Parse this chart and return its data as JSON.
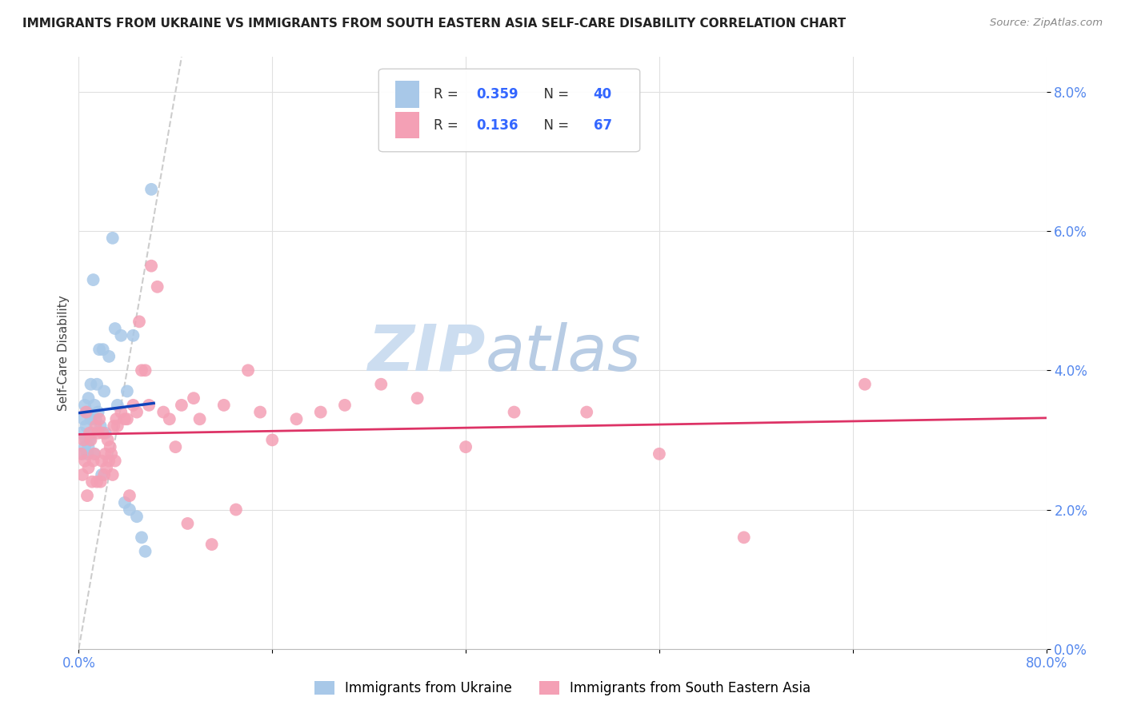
{
  "title": "IMMIGRANTS FROM UKRAINE VS IMMIGRANTS FROM SOUTH EASTERN ASIA SELF-CARE DISABILITY CORRELATION CHART",
  "source": "Source: ZipAtlas.com",
  "ylabel": "Self-Care Disability",
  "ukraine_R": 0.359,
  "ukraine_N": 40,
  "sea_R": 0.136,
  "sea_N": 67,
  "ukraine_color": "#a8c8e8",
  "sea_color": "#f4a0b5",
  "ukraine_line_color": "#1144bb",
  "sea_line_color": "#dd3366",
  "diag_line_color": "#c0c0c0",
  "background_color": "#ffffff",
  "grid_color": "#e0e0e0",
  "xlim": [
    0.0,
    0.8
  ],
  "ylim": [
    0.0,
    0.085
  ],
  "ytick_vals": [
    0.0,
    0.02,
    0.04,
    0.06,
    0.08
  ],
  "ukraine_x": [
    0.002,
    0.003,
    0.004,
    0.005,
    0.005,
    0.006,
    0.006,
    0.007,
    0.007,
    0.008,
    0.008,
    0.009,
    0.01,
    0.01,
    0.011,
    0.012,
    0.013,
    0.013,
    0.014,
    0.015,
    0.016,
    0.017,
    0.018,
    0.019,
    0.02,
    0.021,
    0.022,
    0.025,
    0.028,
    0.03,
    0.032,
    0.035,
    0.038,
    0.04,
    0.042,
    0.045,
    0.048,
    0.052,
    0.055,
    0.06
  ],
  "ukraine_y": [
    0.031,
    0.028,
    0.033,
    0.035,
    0.029,
    0.03,
    0.032,
    0.034,
    0.028,
    0.036,
    0.029,
    0.03,
    0.038,
    0.033,
    0.031,
    0.053,
    0.028,
    0.035,
    0.033,
    0.038,
    0.034,
    0.043,
    0.032,
    0.025,
    0.043,
    0.037,
    0.031,
    0.042,
    0.059,
    0.046,
    0.035,
    0.045,
    0.021,
    0.037,
    0.02,
    0.045,
    0.019,
    0.016,
    0.014,
    0.066
  ],
  "sea_x": [
    0.002,
    0.003,
    0.004,
    0.005,
    0.006,
    0.007,
    0.008,
    0.009,
    0.01,
    0.011,
    0.012,
    0.013,
    0.014,
    0.015,
    0.016,
    0.017,
    0.018,
    0.019,
    0.02,
    0.021,
    0.022,
    0.023,
    0.024,
    0.025,
    0.026,
    0.027,
    0.028,
    0.029,
    0.03,
    0.031,
    0.032,
    0.035,
    0.038,
    0.04,
    0.042,
    0.045,
    0.048,
    0.05,
    0.052,
    0.055,
    0.058,
    0.06,
    0.065,
    0.07,
    0.075,
    0.08,
    0.085,
    0.09,
    0.095,
    0.1,
    0.11,
    0.12,
    0.13,
    0.14,
    0.15,
    0.16,
    0.18,
    0.2,
    0.22,
    0.25,
    0.28,
    0.32,
    0.36,
    0.42,
    0.48,
    0.55,
    0.65
  ],
  "sea_y": [
    0.028,
    0.025,
    0.03,
    0.027,
    0.034,
    0.022,
    0.026,
    0.031,
    0.03,
    0.024,
    0.027,
    0.028,
    0.032,
    0.024,
    0.031,
    0.033,
    0.024,
    0.027,
    0.031,
    0.025,
    0.028,
    0.026,
    0.03,
    0.027,
    0.029,
    0.028,
    0.025,
    0.032,
    0.027,
    0.033,
    0.032,
    0.034,
    0.033,
    0.033,
    0.022,
    0.035,
    0.034,
    0.047,
    0.04,
    0.04,
    0.035,
    0.055,
    0.052,
    0.034,
    0.033,
    0.029,
    0.035,
    0.018,
    0.036,
    0.033,
    0.015,
    0.035,
    0.02,
    0.04,
    0.034,
    0.03,
    0.033,
    0.034,
    0.035,
    0.038,
    0.036,
    0.029,
    0.034,
    0.034,
    0.028,
    0.016,
    0.038
  ]
}
